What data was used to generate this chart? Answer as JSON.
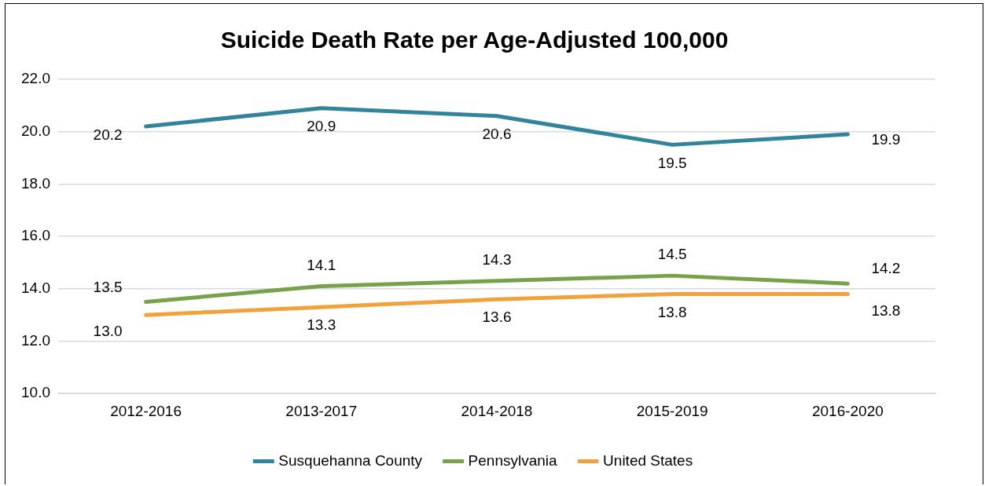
{
  "chart_data": {
    "type": "line",
    "title": "Suicide Death Rate per Age-Adjusted 100,000",
    "categories": [
      "2012-2016",
      "2013-2017",
      "2014-2018",
      "2015-2019",
      "2016-2020"
    ],
    "series": [
      {
        "name": "Susquehanna County",
        "color": "#31849b",
        "values": [
          20.2,
          20.9,
          20.6,
          19.5,
          19.9
        ],
        "value_labels": [
          "20.2",
          "20.9",
          "20.6",
          "19.5",
          "19.9"
        ]
      },
      {
        "name": "Pennsylvania",
        "color": "#77a24a",
        "values": [
          13.5,
          14.1,
          14.3,
          14.5,
          14.2
        ],
        "value_labels": [
          "13.5",
          "14.1",
          "14.3",
          "14.5",
          "14.2"
        ]
      },
      {
        "name": "United States",
        "color": "#f2a23c",
        "values": [
          13.0,
          13.3,
          13.6,
          13.8,
          13.8
        ],
        "value_labels": [
          "13.0",
          "13.3",
          "13.6",
          "13.8",
          "13.8"
        ]
      }
    ],
    "ylim": [
      10,
      22
    ],
    "yticks": [
      {
        "value": 10,
        "label": "10.0"
      },
      {
        "value": 12,
        "label": "12.0"
      },
      {
        "value": 14,
        "label": "14.0"
      },
      {
        "value": 16,
        "label": "16.0"
      },
      {
        "value": 18,
        "label": "18.0"
      },
      {
        "value": 20,
        "label": "20.0"
      },
      {
        "value": 22,
        "label": "22.0"
      }
    ],
    "grid": "y",
    "legend": "bottom",
    "marker": "none",
    "line_style": "solid"
  }
}
